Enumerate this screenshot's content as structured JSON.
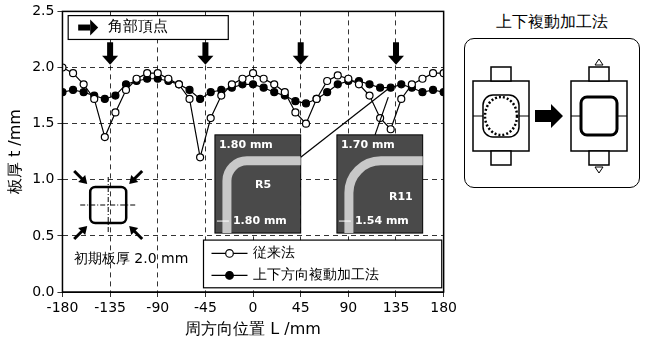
{
  "chart_data": {
    "type": "line",
    "xlabel": "周方向位置 L /mm",
    "ylabel": "板厚 t /mm",
    "x": [
      -180,
      -170,
      -160,
      -150,
      -140,
      -130,
      -120,
      -110,
      -100,
      -90,
      -80,
      -70,
      -60,
      -50,
      -40,
      -30,
      -20,
      -10,
      0,
      10,
      20,
      30,
      40,
      50,
      60,
      70,
      80,
      90,
      100,
      110,
      120,
      130,
      140,
      150,
      160,
      170,
      180
    ],
    "series": [
      {
        "name": "従来法",
        "color": "#000000",
        "marker": "open_circle",
        "line_style": "solid",
        "values": [
          2.0,
          1.95,
          1.85,
          1.72,
          1.38,
          1.6,
          1.8,
          1.9,
          1.95,
          1.95,
          1.9,
          1.85,
          1.72,
          1.2,
          1.55,
          1.75,
          1.85,
          1.9,
          1.95,
          1.9,
          1.85,
          1.78,
          1.6,
          1.5,
          1.72,
          1.88,
          1.93,
          1.9,
          1.85,
          1.75,
          1.55,
          1.45,
          1.72,
          1.85,
          1.9,
          1.95,
          1.95
        ]
      },
      {
        "name": "上下方向複動加工法",
        "color": "#000000",
        "marker": "filled_circle",
        "line_style": "solid",
        "values": [
          1.78,
          1.8,
          1.78,
          1.75,
          1.72,
          1.75,
          1.85,
          1.88,
          1.9,
          1.9,
          1.88,
          1.85,
          1.8,
          1.72,
          1.78,
          1.8,
          1.82,
          1.85,
          1.85,
          1.82,
          1.78,
          1.75,
          1.7,
          1.68,
          1.72,
          1.78,
          1.85,
          1.88,
          1.88,
          1.85,
          1.82,
          1.82,
          1.85,
          1.82,
          1.78,
          1.8,
          1.78
        ]
      }
    ],
    "xlim": [
      -180,
      180
    ],
    "xticks": [
      -180,
      -135,
      -90,
      -45,
      0,
      45,
      90,
      135,
      180
    ],
    "ylim": [
      0,
      2.5
    ],
    "yticks": [
      {
        "value": 0,
        "label": "0.0"
      },
      0.5,
      {
        "value": 1,
        "label": "1.0"
      },
      1.5,
      {
        "value": 2,
        "label": "2.0"
      },
      2.5
    ],
    "grid": true,
    "legend": "lower right",
    "annotations": {
      "corner_label": "角部頂点",
      "corner_x": [
        -135,
        -45,
        45,
        135
      ],
      "initial_thickness": "初期板厚 2.0 mm",
      "insets": [
        {
          "labels": [
            "1.80 mm",
            "R5",
            "1.80 mm"
          ]
        },
        {
          "labels": [
            "1.70 mm",
            "R11",
            "1.54 mm"
          ]
        }
      ]
    }
  },
  "side_diagram": {
    "title": "上下複動加工法"
  }
}
